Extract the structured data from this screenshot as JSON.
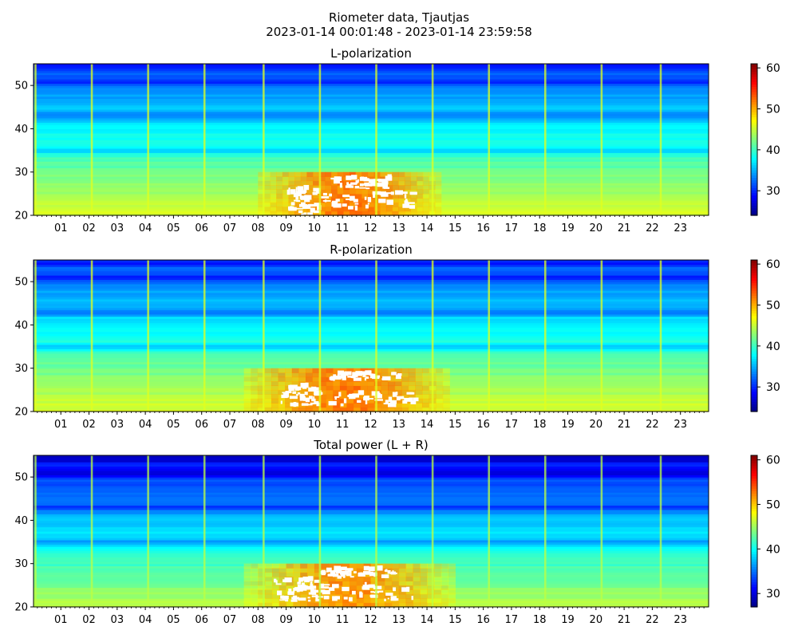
{
  "figure": {
    "title": "Riometer data, Tjautjas",
    "subtitle": "2023-01-14 00:01:48 - 2023-01-14 23:59:58"
  },
  "chart_data": [
    {
      "type": "heatmap",
      "title": "L-polarization",
      "xlabel": "",
      "ylabel": "",
      "x_tick_labels": [
        "01",
        "02",
        "03",
        "04",
        "05",
        "06",
        "07",
        "08",
        "09",
        "10",
        "11",
        "12",
        "13",
        "14",
        "15",
        "16",
        "17",
        "18",
        "19",
        "20",
        "21",
        "22",
        "23"
      ],
      "xlim_hours": [
        0.03,
        24.0
      ],
      "y_ticks": [
        20,
        30,
        40,
        50
      ],
      "ylim": [
        20,
        55
      ],
      "colorbar": {
        "ticks": [
          30,
          40,
          50,
          60
        ],
        "range": [
          24,
          61
        ],
        "colormap": "jet"
      },
      "features": {
        "hot_region_hours": [
          8.0,
          14.5
        ],
        "hot_region_freq": [
          20,
          30
        ],
        "saturated_patches": [
          [
            9.0,
            10.0,
            20,
            26
          ],
          [
            10.5,
            12.6,
            26,
            28.5
          ],
          [
            10.0,
            13.5,
            21,
            25
          ]
        ],
        "vertical_stripes_hours": [
          0.1,
          2.1,
          4.1,
          6.1,
          8.2,
          10.2,
          12.2,
          14.2,
          16.2,
          18.2,
          20.2,
          22.3
        ],
        "dark_bands_freq": [
          35,
          43,
          51
        ]
      }
    },
    {
      "type": "heatmap",
      "title": "R-polarization",
      "xlabel": "",
      "ylabel": "",
      "x_tick_labels": [
        "01",
        "02",
        "03",
        "04",
        "05",
        "06",
        "07",
        "08",
        "09",
        "10",
        "11",
        "12",
        "13",
        "14",
        "15",
        "16",
        "17",
        "18",
        "19",
        "20",
        "21",
        "22",
        "23"
      ],
      "xlim_hours": [
        0.03,
        24.0
      ],
      "y_ticks": [
        20,
        30,
        40,
        50
      ],
      "ylim": [
        20,
        55
      ],
      "colorbar": {
        "ticks": [
          30,
          40,
          50,
          60
        ],
        "range": [
          24,
          61
        ],
        "colormap": "jet"
      },
      "features": {
        "hot_region_hours": [
          7.5,
          14.8
        ],
        "hot_region_freq": [
          20,
          30
        ],
        "saturated_patches": [
          [
            8.8,
            10.0,
            21,
            26
          ],
          [
            10.5,
            13.0,
            27,
            28.5
          ],
          [
            9.8,
            13.5,
            21,
            24
          ]
        ],
        "vertical_stripes_hours": [
          0.1,
          2.1,
          4.1,
          6.1,
          8.2,
          10.2,
          12.2,
          14.2,
          16.2,
          18.2,
          20.2,
          22.3
        ],
        "dark_bands_freq": [
          35,
          43,
          51
        ]
      }
    },
    {
      "type": "heatmap",
      "title": "Total power (L + R)",
      "xlabel": "",
      "ylabel": "",
      "x_tick_labels": [
        "01",
        "02",
        "03",
        "04",
        "05",
        "06",
        "07",
        "08",
        "09",
        "10",
        "11",
        "12",
        "13",
        "14",
        "15",
        "16",
        "17",
        "18",
        "19",
        "20",
        "21",
        "22",
        "23"
      ],
      "xlim_hours": [
        0.03,
        24.0
      ],
      "y_ticks": [
        20,
        30,
        40,
        50
      ],
      "ylim": [
        20,
        55
      ],
      "colorbar": {
        "ticks": [
          30,
          40,
          50,
          60
        ],
        "range": [
          27,
          61
        ],
        "colormap": "jet"
      },
      "features": {
        "hot_region_hours": [
          7.5,
          15.0
        ],
        "hot_region_freq": [
          20,
          30
        ],
        "saturated_patches": [
          [
            8.5,
            10.0,
            21,
            26
          ],
          [
            10.2,
            12.8,
            26.5,
            28.5
          ],
          [
            9.8,
            13.5,
            21,
            25
          ]
        ],
        "vertical_stripes_hours": [
          0.1,
          2.1,
          4.1,
          6.1,
          8.2,
          10.2,
          12.2,
          14.2,
          16.2,
          18.2,
          20.2,
          22.3
        ],
        "dark_bands_freq": [
          35,
          43,
          51
        ]
      }
    }
  ]
}
